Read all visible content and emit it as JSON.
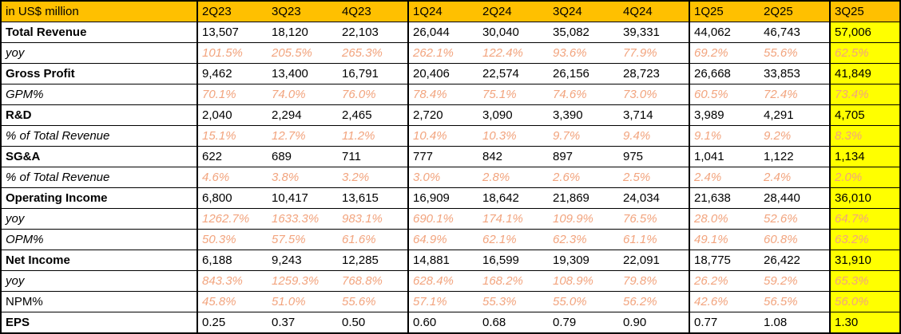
{
  "colors": {
    "header_bg": "#FFC000",
    "highlight_bg": "#FFFF00",
    "accent_text": "#F2A47E",
    "border": "#000000"
  },
  "chart_data": {
    "type": "table",
    "unit_label": "in US$ million",
    "columns": [
      "2Q23",
      "3Q23",
      "4Q23",
      "1Q24",
      "2Q24",
      "3Q24",
      "4Q24",
      "1Q25",
      "2Q25",
      "3Q25"
    ],
    "highlight_column": "3Q25",
    "group_start_columns": [
      "2Q23",
      "1Q24",
      "1Q25",
      "3Q25"
    ],
    "rows": [
      {
        "label": "Total Revenue",
        "type": "strong",
        "values": [
          "13,507",
          "18,120",
          "22,103",
          "26,044",
          "30,040",
          "35,082",
          "39,331",
          "44,062",
          "46,743",
          "57,006"
        ]
      },
      {
        "label": "yoy",
        "type": "sub",
        "values": [
          "101.5%",
          "205.5%",
          "265.3%",
          "262.1%",
          "122.4%",
          "93.6%",
          "77.9%",
          "69.2%",
          "55.6%",
          "62.5%"
        ]
      },
      {
        "label": "Gross Profit",
        "type": "strong",
        "values": [
          "9,462",
          "13,400",
          "16,791",
          "20,406",
          "22,574",
          "26,156",
          "28,723",
          "26,668",
          "33,853",
          "41,849"
        ]
      },
      {
        "label": "GPM%",
        "type": "sub",
        "values": [
          "70.1%",
          "74.0%",
          "76.0%",
          "78.4%",
          "75.1%",
          "74.6%",
          "73.0%",
          "60.5%",
          "72.4%",
          "73.4%"
        ]
      },
      {
        "label": "R&D",
        "type": "strong",
        "values": [
          "2,040",
          "2,294",
          "2,465",
          "2,720",
          "3,090",
          "3,390",
          "3,714",
          "3,989",
          "4,291",
          "4,705"
        ]
      },
      {
        "label": "% of Total Revenue",
        "type": "sub",
        "values": [
          "15.1%",
          "12.7%",
          "11.2%",
          "10.4%",
          "10.3%",
          "9.7%",
          "9.4%",
          "9.1%",
          "9.2%",
          "8.3%"
        ]
      },
      {
        "label": "SG&A",
        "type": "strong",
        "values": [
          "622",
          "689",
          "711",
          "777",
          "842",
          "897",
          "975",
          "1,041",
          "1,122",
          "1,134"
        ]
      },
      {
        "label": "% of Total Revenue",
        "type": "sub",
        "values": [
          "4.6%",
          "3.8%",
          "3.2%",
          "3.0%",
          "2.8%",
          "2.6%",
          "2.5%",
          "2.4%",
          "2.4%",
          "2.0%"
        ]
      },
      {
        "label": "Operating Income",
        "type": "strong",
        "values": [
          "6,800",
          "10,417",
          "13,615",
          "16,909",
          "18,642",
          "21,869",
          "24,034",
          "21,638",
          "28,440",
          "36,010"
        ]
      },
      {
        "label": "yoy",
        "type": "sub",
        "values": [
          "1262.7%",
          "1633.3%",
          "983.1%",
          "690.1%",
          "174.1%",
          "109.9%",
          "76.5%",
          "28.0%",
          "52.6%",
          "64.7%"
        ]
      },
      {
        "label": "OPM%",
        "type": "sub",
        "values": [
          "50.3%",
          "57.5%",
          "61.6%",
          "64.9%",
          "62.1%",
          "62.3%",
          "61.1%",
          "49.1%",
          "60.8%",
          "63.2%"
        ]
      },
      {
        "label": "Net Income",
        "type": "strong",
        "values": [
          "6,188",
          "9,243",
          "12,285",
          "14,881",
          "16,599",
          "19,309",
          "22,091",
          "18,775",
          "26,422",
          "31,910"
        ]
      },
      {
        "label": "yoy",
        "type": "sub",
        "values": [
          "843.3%",
          "1259.3%",
          "768.8%",
          "628.4%",
          "168.2%",
          "108.9%",
          "79.8%",
          "26.2%",
          "59.2%",
          "65.3%"
        ]
      },
      {
        "label": "NPM%",
        "type": "sub_plain",
        "values": [
          "45.8%",
          "51.0%",
          "55.6%",
          "57.1%",
          "55.3%",
          "55.0%",
          "56.2%",
          "42.6%",
          "56.5%",
          "56.0%"
        ]
      },
      {
        "label": "EPS",
        "type": "strong",
        "values": [
          "0.25",
          "0.37",
          "0.50",
          "0.60",
          "0.68",
          "0.79",
          "0.90",
          "0.77",
          "1.08",
          "1.30"
        ]
      }
    ]
  }
}
